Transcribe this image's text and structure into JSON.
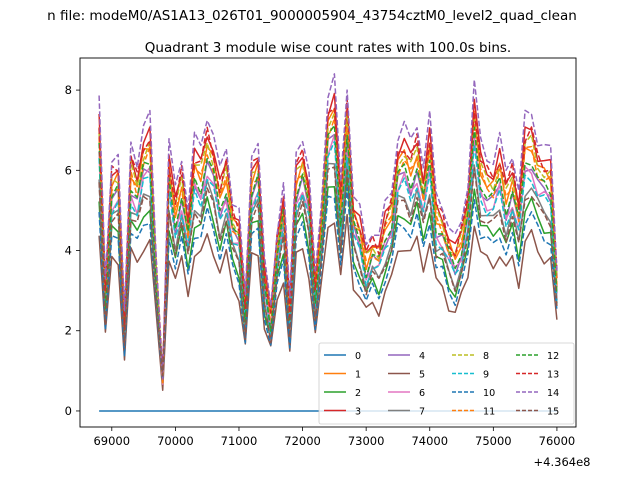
{
  "figure": {
    "suptitle": "n file: modeM0/AS1A13_026T01_9000005904_43754cztM0_level2_quad_clean",
    "title": "Quadrant 3 module wise count rates with 100.0s bins.",
    "offset_text": "+4.364e8"
  },
  "chart_data": {
    "type": "line",
    "title": "Quadrant 3 module wise count rates with 100.0s bins.",
    "xlabel": "",
    "ylabel": "",
    "x_offset": 436400000,
    "xlim": [
      68500,
      76300
    ],
    "ylim": [
      -0.4,
      8.8
    ],
    "xticks": [
      69000,
      70000,
      71000,
      72000,
      73000,
      74000,
      75000,
      76000
    ],
    "yticks": [
      0,
      2,
      4,
      6,
      8
    ],
    "grid": false,
    "legend": {
      "placement": "lower right",
      "columns": 4
    },
    "x": [
      68800,
      68900,
      69000,
      69100,
      69200,
      69300,
      69400,
      69500,
      69600,
      69700,
      69800,
      69900,
      70000,
      70100,
      70200,
      70300,
      70400,
      70500,
      70600,
      70700,
      70800,
      70900,
      71000,
      71100,
      71200,
      71300,
      71400,
      71500,
      71600,
      71700,
      71800,
      71900,
      72000,
      72100,
      72200,
      72300,
      72400,
      72500,
      72600,
      72700,
      72800,
      72900,
      73000,
      73100,
      73200,
      73300,
      73400,
      73500,
      73600,
      73700,
      73800,
      73900,
      74000,
      74100,
      74200,
      74300,
      74400,
      74500,
      74600,
      74700,
      74800,
      74900,
      75000,
      75100,
      75200,
      75300,
      75400,
      75500,
      75600,
      75700,
      75800,
      75900,
      76000
    ],
    "base_profile": [
      7.3,
      3.0,
      6.0,
      6.1,
      2.2,
      6.3,
      5.9,
      6.7,
      6.9,
      3.6,
      0.9,
      6.3,
      5.2,
      6.0,
      4.8,
      6.4,
      6.2,
      7.0,
      6.5,
      5.6,
      6.2,
      5.0,
      4.7,
      2.6,
      6.1,
      6.4,
      3.5,
      2.4,
      4.3,
      5.4,
      2.5,
      6.1,
      6.5,
      5.6,
      3.1,
      5.0,
      7.5,
      7.8,
      5.3,
      7.7,
      5.1,
      4.7,
      3.9,
      4.3,
      4.1,
      4.8,
      5.2,
      6.5,
      6.7,
      6.3,
      6.8,
      5.8,
      6.9,
      5.1,
      4.9,
      4.3,
      4.0,
      4.5,
      5.4,
      7.7,
      6.3,
      6.0,
      5.9,
      6.4,
      5.6,
      6.1,
      5.2,
      6.9,
      7.0,
      6.4,
      6.2,
      6.1,
      3.4
    ],
    "series": [
      {
        "name": "0",
        "color": "#1f77b4",
        "dash": "solid",
        "values": "constant 0.0 for all bins"
      },
      {
        "name": "1",
        "color": "#ff7f0e",
        "dash": "solid",
        "scale": 0.95
      },
      {
        "name": "2",
        "color": "#2ca02c",
        "dash": "solid",
        "scale": 0.74
      },
      {
        "name": "3",
        "color": "#d62728",
        "dash": "solid",
        "scale": 1.0
      },
      {
        "name": "4",
        "color": "#9467bd",
        "dash": "solid",
        "scale": 0.88
      },
      {
        "name": "5",
        "color": "#8c564b",
        "dash": "solid",
        "scale": 0.62
      },
      {
        "name": "6",
        "color": "#e377c2",
        "dash": "solid",
        "scale": 0.86
      },
      {
        "name": "7",
        "color": "#7f7f7f",
        "dash": "solid",
        "scale": 0.8
      },
      {
        "name": "8",
        "color": "#bcbd22",
        "dash": "dashed",
        "scale": 0.96
      },
      {
        "name": "9",
        "color": "#17becf",
        "dash": "dashed",
        "scale": 0.84
      },
      {
        "name": "10",
        "color": "#1f77b4",
        "dash": "dashed",
        "scale": 0.7
      },
      {
        "name": "11",
        "color": "#ff7f0e",
        "dash": "dashed",
        "scale": 0.93
      },
      {
        "name": "12",
        "color": "#2ca02c",
        "dash": "dashed",
        "scale": 0.9
      },
      {
        "name": "13",
        "color": "#d62728",
        "dash": "dashed",
        "scale": 0.99
      },
      {
        "name": "14",
        "color": "#9467bd",
        "dash": "dashed",
        "scale": 1.06
      },
      {
        "name": "15",
        "color": "#8c564b",
        "dash": "dashed",
        "scale": 0.78
      }
    ]
  }
}
